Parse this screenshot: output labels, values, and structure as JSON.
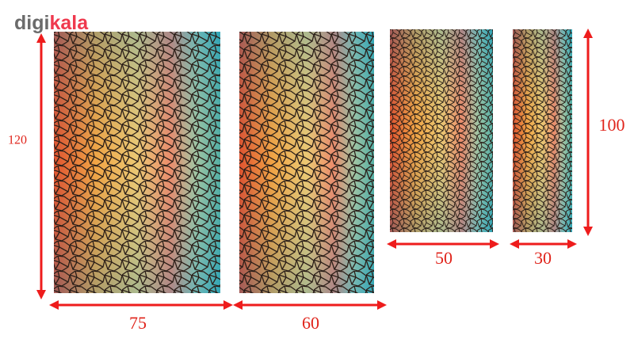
{
  "logo": {
    "first": "digi",
    "second": "kala"
  },
  "dimensions": {
    "height_large": "120",
    "width_1": "75",
    "width_2": "60",
    "width_3": "50",
    "width_4": "30",
    "height_small": "100"
  }
}
